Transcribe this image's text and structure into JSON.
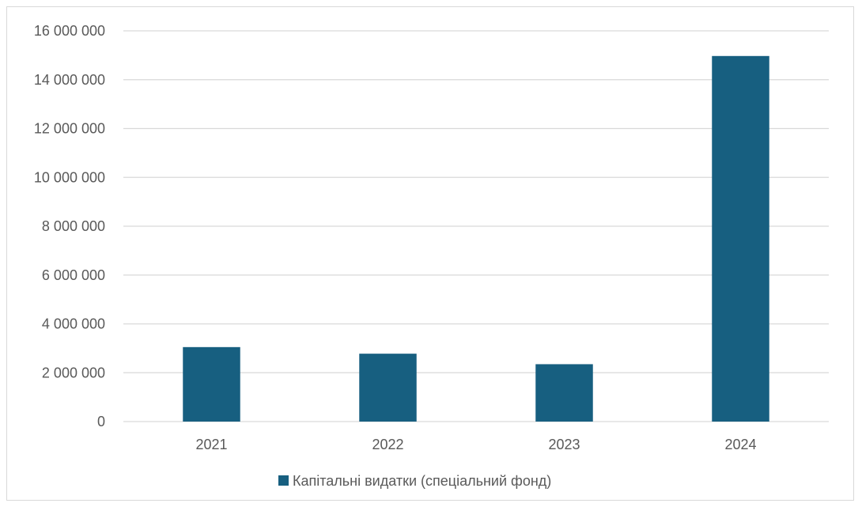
{
  "chart_data": {
    "type": "bar",
    "title": "",
    "xlabel": "",
    "ylabel": "",
    "categories": [
      "2021",
      "2022",
      "2023",
      "2024"
    ],
    "series": [
      {
        "name": "Капітальні видатки (спеціальний фонд)",
        "values": [
          3050000,
          2780000,
          2350000,
          14970000
        ],
        "color": "#175f80"
      }
    ],
    "ylim": [
      0,
      16000000
    ],
    "yticks": [
      0,
      2000000,
      4000000,
      6000000,
      8000000,
      10000000,
      12000000,
      14000000,
      16000000
    ],
    "ytick_labels": [
      "0",
      "2 000 000",
      "4 000 000",
      "6 000 000",
      "8 000 000",
      "10 000 000",
      "12 000 000",
      "14 000 000",
      "16 000 000"
    ],
    "grid": true,
    "gridline_color": "#d9d9d9",
    "legend_position": "bottom"
  }
}
